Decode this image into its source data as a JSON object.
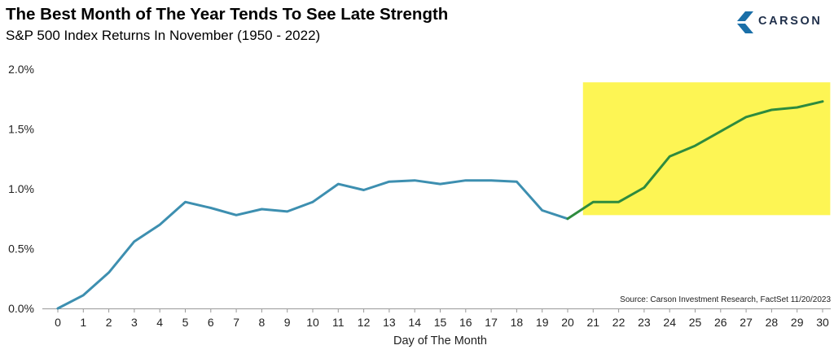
{
  "header": {
    "title": "The Best Month of The Year Tends To See Late Strength",
    "subtitle": "S&P 500 Index Returns In November (1950 - 2022)"
  },
  "logo": {
    "text": "CARSON",
    "icon": "carson-chevron-icon",
    "color": "#1a6fa8"
  },
  "chart_data": {
    "type": "line",
    "title": "The Best Month of The Year Tends To See Late Strength",
    "subtitle": "S&P 500 Index Returns In November (1950 - 2022)",
    "xlabel": "Day of The Month",
    "ylabel": "",
    "x": [
      0,
      1,
      2,
      3,
      4,
      5,
      6,
      7,
      8,
      9,
      10,
      11,
      12,
      13,
      14,
      15,
      16,
      17,
      18,
      19,
      20,
      21,
      22,
      23,
      24,
      25,
      26,
      27,
      28,
      29,
      30
    ],
    "y_ticks": [
      "0.0%",
      "0.5%",
      "1.0%",
      "1.5%",
      "2.0%"
    ],
    "ylim": [
      0,
      2.0
    ],
    "series": [
      {
        "values": [
          0.0,
          0.11,
          0.3,
          0.56,
          0.7,
          0.89,
          0.84,
          0.78,
          0.83,
          0.81,
          0.89,
          1.04,
          0.99,
          1.06,
          1.07,
          1.04,
          1.07,
          1.07,
          1.06,
          0.82,
          0.75,
          0.89,
          0.89,
          1.01,
          1.27,
          1.36,
          1.48,
          1.6,
          1.66,
          1.68,
          1.73
        ],
        "color": "#3d8fb0",
        "highlight_color": "#2e8b3e",
        "highlight_from_x": 20
      }
    ],
    "highlight_region": {
      "x_range": [
        20.6,
        30.3
      ],
      "y_range": [
        0.78,
        1.89
      ],
      "color": "#fdf554"
    },
    "grid": false,
    "source": "Source: Carson Investment Research, FactSet 11/20/2023"
  }
}
